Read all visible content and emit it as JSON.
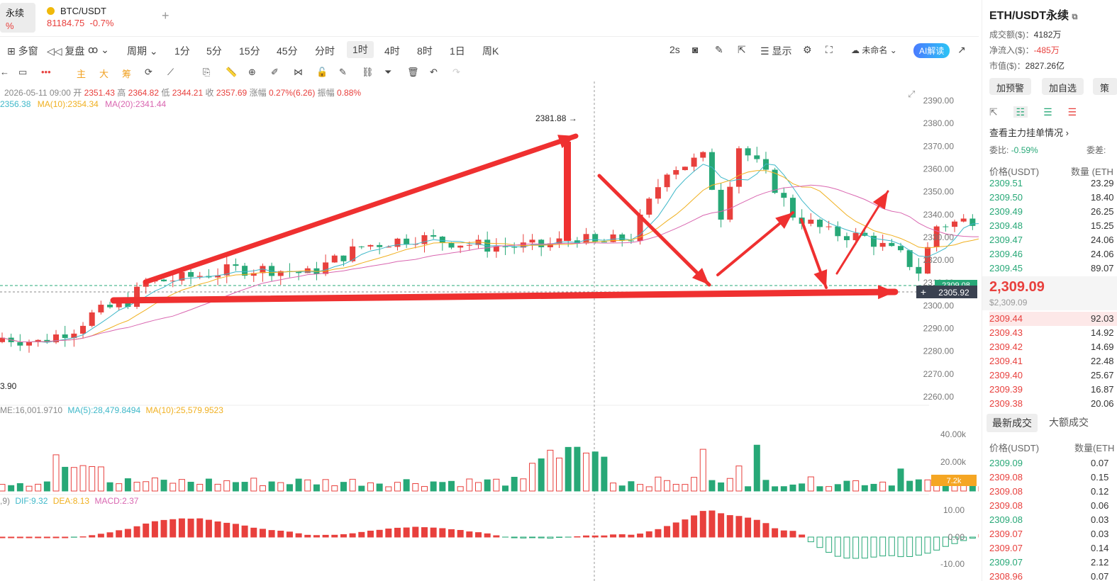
{
  "tabs": [
    {
      "label": "永续",
      "change": "%"
    },
    {
      "label": "BTC/USDT",
      "price": "81184.75",
      "change": "-0.7%"
    }
  ],
  "toolbar": {
    "multiwindow": "多窗",
    "replay": "复盘",
    "period": "周期",
    "periods": [
      "1分",
      "5分",
      "15分",
      "45分",
      "分时",
      "1时",
      "4时",
      "8时",
      "1日",
      "周K"
    ],
    "active_period": "1时",
    "interval": "2s",
    "display": "显示",
    "unnamed": "未命名",
    "ai": "AI解读",
    "drawing": {
      "main": "主",
      "big": "大",
      "chips": "筹"
    }
  },
  "ohlc_line": {
    "date": "2026-05-11 09:00",
    "open_label": "开",
    "open": "2351.43",
    "high_label": "高",
    "high": "2364.82",
    "low_label": "低",
    "low": "2344.21",
    "close_label": "收",
    "close": "2357.69",
    "change_label": "涨幅",
    "change": "0.27%(6.26)",
    "amp_label": "振幅",
    "amp": "0.88%"
  },
  "ma_line": {
    "ma5": "2356.38",
    "ma10": "MA(10):2354.34",
    "ma20": "MA(20):2341.44"
  },
  "vol_line": {
    "vol": "ME:16,001.9710",
    "ma5": "MA(5):28,479.8494",
    "ma10": "MA(10):25,579.9523"
  },
  "macd_line": {
    "params": ",9)",
    "dif": "DIF:9.32",
    "dea": "DEA:8.13",
    "macd": "MACD:2.37"
  },
  "annotations": {
    "high_label": "2381.88",
    "low_label": "3.90"
  },
  "price_axis": [
    "2390.00",
    "2380.00",
    "2370.00",
    "2360.00",
    "2350.00",
    "2340.00",
    "2330.00",
    "2320.00",
    "2310.00",
    "2300.00",
    "2290.00",
    "2280.00",
    "2270.00",
    "2260.00"
  ],
  "current_price_tag": "2309.08",
  "crosshair_price_tag": "2305.92",
  "volume_axis": [
    "40.00k",
    "20.00k"
  ],
  "volume_tag": "7.2k",
  "macd_axis": [
    "10.00",
    "0.00",
    "-10.00"
  ],
  "colors": {
    "up": "#e8403d",
    "down": "#27a877",
    "ma5": "#3fb8c9",
    "ma10": "#f0b020",
    "ma20": "#d966b0",
    "arrow": "#ef3030"
  },
  "right_panel": {
    "title": "ETH/USDT永续",
    "turnover_label": "成交额($)：",
    "turnover": "4182万",
    "netflow_label": "净流入($)：",
    "netflow": "-485万",
    "mcap_label": "市值($)：",
    "mcap": "2827.26亿",
    "btn_alert": "加预警",
    "btn_watch": "加自选",
    "btn_strategy": "策",
    "main_orders": "查看主力挂单情况",
    "ratio_label": "委比:",
    "ratio": "-0.59%",
    "diff_label": "委差:",
    "price_header": "价格(USDT)",
    "qty_header": "数量 (ETH",
    "asks": [
      {
        "p": "2309.51",
        "q": "23.29"
      },
      {
        "p": "2309.50",
        "q": "18.40"
      },
      {
        "p": "2309.49",
        "q": "26.25"
      },
      {
        "p": "2309.48",
        "q": "15.25"
      },
      {
        "p": "2309.47",
        "q": "24.06"
      },
      {
        "p": "2309.46",
        "q": "24.06"
      },
      {
        "p": "2309.45",
        "q": "89.07"
      }
    ],
    "last_price": "2,309.09",
    "last_price_usd": "$2,309.09",
    "bids": [
      {
        "p": "2309.44",
        "q": "92.03"
      },
      {
        "p": "2309.43",
        "q": "14.92"
      },
      {
        "p": "2309.42",
        "q": "14.69"
      },
      {
        "p": "2309.41",
        "q": "22.48"
      },
      {
        "p": "2309.40",
        "q": "25.67"
      },
      {
        "p": "2309.39",
        "q": "16.87"
      },
      {
        "p": "2309.38",
        "q": "20.06"
      }
    ],
    "tab_latest": "最新成交",
    "tab_big": "大额成交",
    "trades_price_header": "价格(USDT)",
    "trades_qty_header": "数量(ETH",
    "trades": [
      {
        "p": "2309.09",
        "q": "0.07",
        "side": "down"
      },
      {
        "p": "2309.08",
        "q": "0.15",
        "side": "up"
      },
      {
        "p": "2309.08",
        "q": "0.12",
        "side": "up"
      },
      {
        "p": "2309.08",
        "q": "0.06",
        "side": "up"
      },
      {
        "p": "2309.08",
        "q": "0.03",
        "side": "down"
      },
      {
        "p": "2309.07",
        "q": "0.03",
        "side": "up"
      },
      {
        "p": "2309.07",
        "q": "0.14",
        "side": "up"
      },
      {
        "p": "2309.07",
        "q": "2.12",
        "side": "down"
      },
      {
        "p": "2308.96",
        "q": "0.07",
        "side": "up"
      }
    ]
  }
}
